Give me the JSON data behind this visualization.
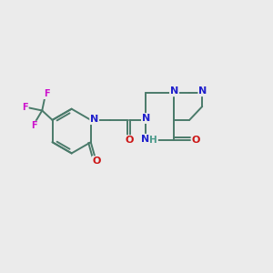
{
  "bg_color": "#ebebeb",
  "bond_color": "#4a7a6a",
  "n_color": "#2020cc",
  "o_color": "#cc1515",
  "f_color": "#cc10cc",
  "h_color": "#4a9a8a",
  "lw": 1.4,
  "fs": 8.0,
  "fs_small": 7.0,
  "xlim": [
    0,
    10
  ],
  "ylim": [
    0,
    10
  ],
  "figsize": [
    3.0,
    3.0
  ],
  "dpi": 100
}
